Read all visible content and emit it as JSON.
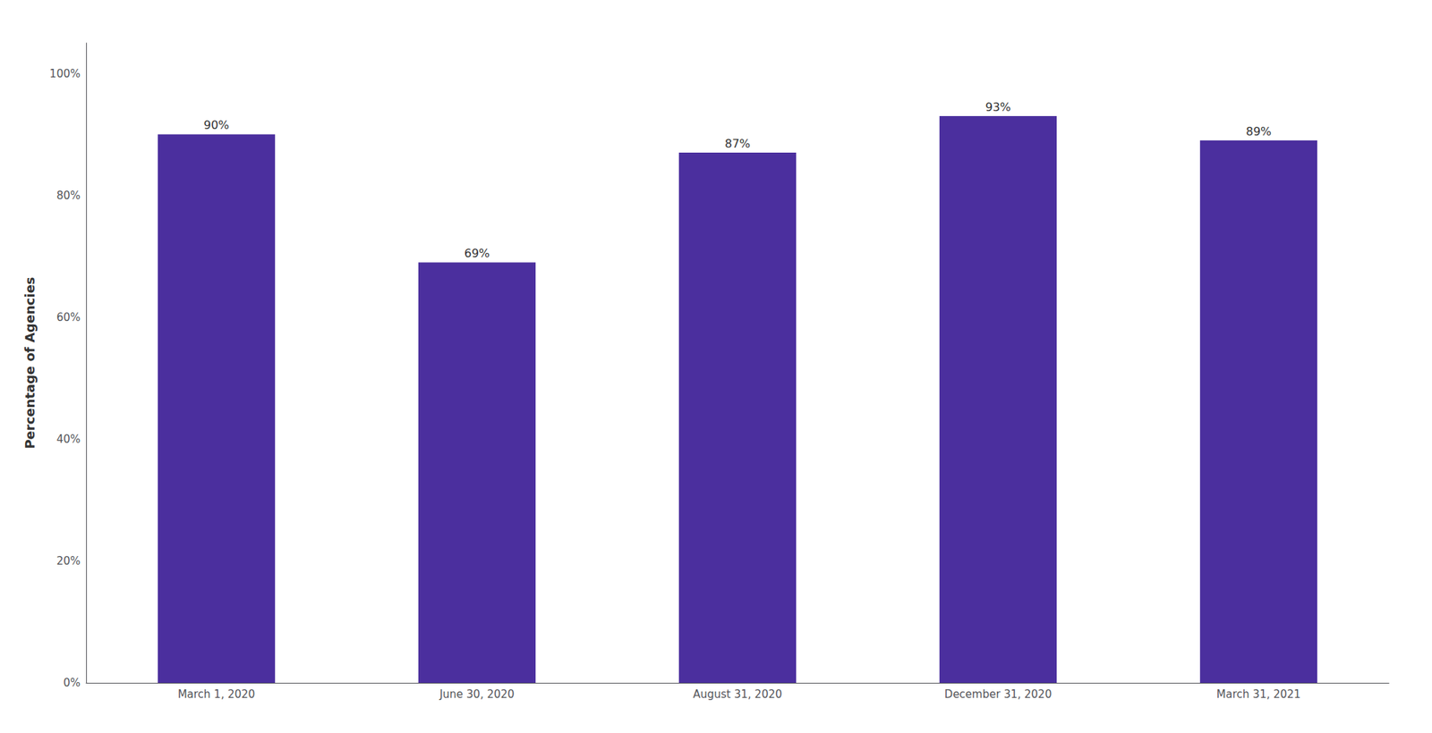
{
  "chart_data": {
    "type": "bar",
    "categories": [
      "March 1, 2020",
      "June 30, 2020",
      "August 31, 2020",
      "December 31, 2020",
      "March 31, 2021"
    ],
    "values": [
      90,
      69,
      87,
      93,
      89
    ],
    "value_labels": [
      "90%",
      "69%",
      "87%",
      "93%",
      "89%"
    ],
    "color": "#4b2f9e",
    "ylabel": "Percentage of Agencies",
    "ylim": [
      0,
      105
    ],
    "yticks": [
      {
        "value": 0,
        "label": "0%"
      },
      {
        "value": 20,
        "label": "20%"
      },
      {
        "value": 40,
        "label": "40%"
      },
      {
        "value": 60,
        "label": "60%"
      },
      {
        "value": 80,
        "label": "80%"
      },
      {
        "value": 100,
        "label": "100%"
      }
    ],
    "grid": false,
    "data_labels": true
  }
}
